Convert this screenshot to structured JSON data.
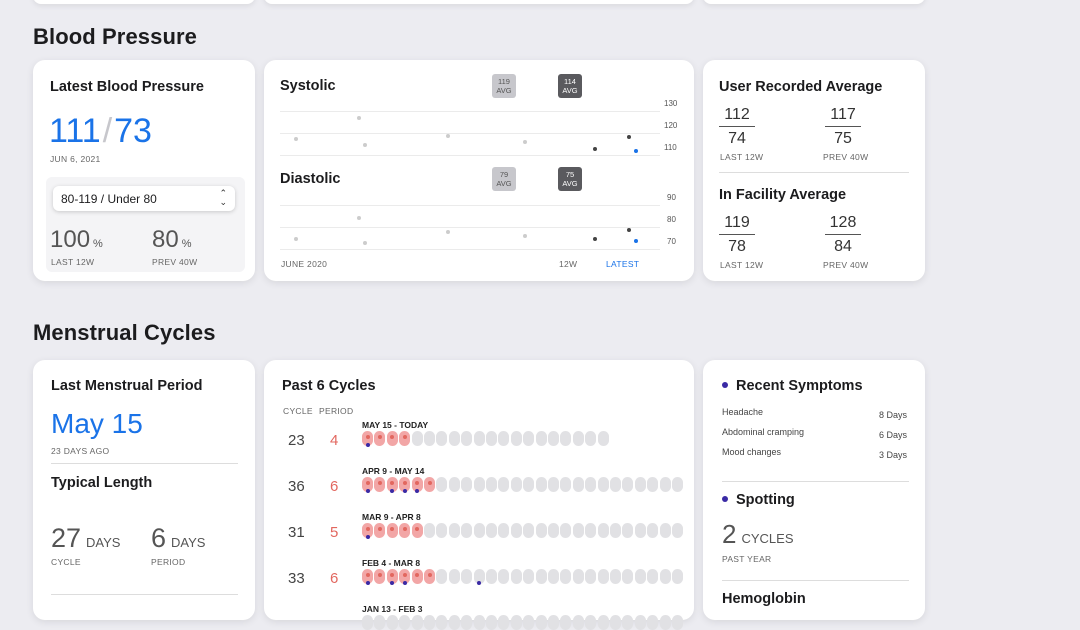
{
  "blood_pressure": {
    "section_title": "Blood Pressure",
    "latest": {
      "title": "Latest Blood Pressure",
      "systolic": "111",
      "slash": "/",
      "diastolic": "73",
      "date": "JUN 6, 2021",
      "range_select": "80-119 / Under 80",
      "stat1_value": "100",
      "stat1_unit": "%",
      "stat1_label": "LAST 12W",
      "stat2_value": "80",
      "stat2_unit": "%",
      "stat2_label": "PREV 40W"
    },
    "chart": {
      "systolic_title": "Systolic",
      "diastolic_title": "Diastolic",
      "sys_badge_avg1": "119",
      "sys_badge_avg2": "114",
      "dia_badge_avg1": "79",
      "dia_badge_avg2": "75",
      "avg_label": "AVG",
      "sys_ticks": [
        "130",
        "120",
        "110"
      ],
      "dia_ticks": [
        "90",
        "80",
        "70"
      ],
      "x_start": "JUNE 2020",
      "x_mid": "12W",
      "x_end": "LATEST"
    },
    "averages": {
      "user_title": "User Recorded Average",
      "user_12w_sys": "112",
      "user_12w_dia": "74",
      "user_40w_sys": "117",
      "user_40w_dia": "75",
      "facility_title": "In Facility Average",
      "fac_12w_sys": "119",
      "fac_12w_dia": "78",
      "fac_40w_sys": "128",
      "fac_40w_dia": "84",
      "label_12w": "LAST 12W",
      "label_40w": "PREV 40W"
    }
  },
  "menstrual": {
    "section_title": "Menstrual Cycles",
    "last_period": {
      "title": "Last Menstrual Period",
      "date": "May 15",
      "ago": "23 DAYS AGO",
      "typical_title": "Typical Length",
      "cycle_value": "27",
      "cycle_unit": "DAYS",
      "cycle_label": "CYCLE",
      "period_value": "6",
      "period_unit": "DAYS",
      "period_label": "PERIOD"
    },
    "past_cycles": {
      "title": "Past 6 Cycles",
      "col_cycle": "CYCLE",
      "col_period": "PERIOD",
      "rows": [
        {
          "cycle": "23",
          "period": "4",
          "range": "May 15 - Today"
        },
        {
          "cycle": "36",
          "period": "6",
          "range": "Apr 9 - May 14"
        },
        {
          "cycle": "31",
          "period": "5",
          "range": "Mar 9 - Apr 8"
        },
        {
          "cycle": "33",
          "period": "6",
          "range": "Feb 4 - Mar 8"
        },
        {
          "cycle": "",
          "period": "",
          "range": "Jan 13 - Feb 3"
        }
      ]
    },
    "symptoms": {
      "recent_title": "Recent Symptoms",
      "items": [
        {
          "name": "Headache",
          "days": "8 Days"
        },
        {
          "name": "Abdominal cramping",
          "days": "6 Days"
        },
        {
          "name": "Mood changes",
          "days": "3 Days"
        }
      ],
      "spotting_title": "Spotting",
      "spotting_value": "2",
      "spotting_unit": "CYCLES",
      "spotting_label": "PAST YEAR",
      "hemoglobin_title": "Hemoglobin"
    }
  },
  "colors": {
    "accent_blue": "#1a73e8",
    "period_red": "#e2675f",
    "spotting_purple": "#3a2aa5"
  }
}
